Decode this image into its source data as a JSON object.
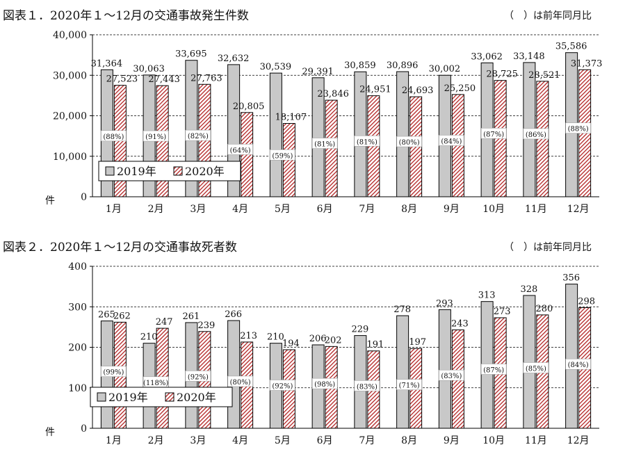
{
  "colors": {
    "series_2019": "#c8c8c8",
    "series_2020": "#b22222",
    "gridline": "#000000",
    "axis": "#000000"
  },
  "chart_data": [
    {
      "type": "bar",
      "title": "図表１．2020年１～12月の交通事故発生件数",
      "note": "（　）は前年同月比",
      "unit_label": "件",
      "categories": [
        "1月",
        "2月",
        "3月",
        "4月",
        "5月",
        "6月",
        "7月",
        "8月",
        "9月",
        "10月",
        "11月",
        "12月"
      ],
      "ylim": [
        0,
        40000
      ],
      "yticks": [
        "0",
        "10,000",
        "20,000",
        "30,000",
        "40,000"
      ],
      "grid": true,
      "legend_position": "lower-left",
      "series": [
        {
          "name": "2019年",
          "values": [
            31364,
            30063,
            33695,
            32632,
            30539,
            29391,
            30859,
            30896,
            30002,
            33062,
            33148,
            35586
          ],
          "labels": [
            "31,364",
            "30,063",
            "33,695",
            "32,632",
            "30,539",
            "29,391",
            "30,859",
            "30,896",
            "30,002",
            "33,062",
            "33,148",
            "35,586"
          ]
        },
        {
          "name": "2020年",
          "values": [
            27523,
            27443,
            27763,
            20805,
            18107,
            23846,
            24951,
            24693,
            25250,
            28725,
            28521,
            31373
          ],
          "labels": [
            "27,523",
            "27,443",
            "27,763",
            "20,805",
            "18,107",
            "23,846",
            "24,951",
            "24,693",
            "25,250",
            "28,725",
            "28,521",
            "31,373"
          ]
        }
      ],
      "ratios": [
        "(88%)",
        "(91%)",
        "(82%)",
        "(64%)",
        "(59%)",
        "(81%)",
        "(81%)",
        "(80%)",
        "(84%)",
        "(87%)",
        "(86%)",
        "(88%)"
      ]
    },
    {
      "type": "bar",
      "title": "図表２．2020年１～12月の交通事故死者数",
      "note": "（　）は前年同月比",
      "unit_label": "件",
      "categories": [
        "1月",
        "2月",
        "3月",
        "4月",
        "5月",
        "6月",
        "7月",
        "8月",
        "9月",
        "10月",
        "11月",
        "12月"
      ],
      "ylim": [
        0,
        400
      ],
      "yticks": [
        "0",
        "100",
        "200",
        "300",
        "400"
      ],
      "grid": true,
      "legend_position": "lower-left",
      "series": [
        {
          "name": "2019年",
          "values": [
            265,
            210,
            261,
            266,
            210,
            206,
            229,
            278,
            293,
            313,
            328,
            356
          ],
          "labels": [
            "265",
            "210",
            "261",
            "266",
            "210",
            "206",
            "229",
            "278",
            "293",
            "313",
            "328",
            "356"
          ]
        },
        {
          "name": "2020年",
          "values": [
            262,
            247,
            239,
            213,
            194,
            202,
            191,
            197,
            243,
            273,
            280,
            298
          ],
          "labels": [
            "262",
            "247",
            "239",
            "213",
            "194",
            "202",
            "191",
            "197",
            "243",
            "273",
            "280",
            "298"
          ]
        }
      ],
      "ratios": [
        "(99%)",
        "(118%)",
        "(92%)",
        "(80%)",
        "(92%)",
        "(98%)",
        "(83%)",
        "(71%)",
        "(83%)",
        "(87%)",
        "(85%)",
        "(84%)"
      ]
    }
  ]
}
